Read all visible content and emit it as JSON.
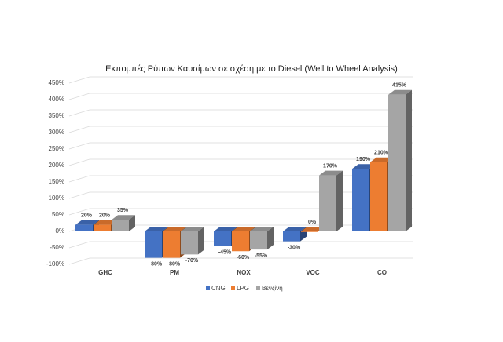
{
  "chart_data": {
    "type": "bar3d",
    "title": "Εκπομπές Ρύπων Καυσίμων σε σχέση με το Diesel (Well to Wheel Analysis)",
    "categories": [
      "GHC",
      "PM",
      "NOX",
      "VOC",
      "CO"
    ],
    "series": [
      {
        "name": "CNG",
        "color": "#4472c4",
        "values": [
          20,
          -80,
          -45,
          -30,
          190
        ],
        "value_labels": [
          "20%",
          "-80%",
          "-45%",
          "-30%",
          "190%"
        ]
      },
      {
        "name": "LPG",
        "color": "#ed7d31",
        "values": [
          20,
          -80,
          -60,
          0,
          210
        ],
        "value_labels": [
          "20%",
          "-80%",
          "-60%",
          "0%",
          "210%"
        ]
      },
      {
        "name": "Βενζίνη",
        "color": "#a5a5a5",
        "values": [
          35,
          -70,
          -55,
          170,
          415
        ],
        "value_labels": [
          "35%",
          "-70%",
          "-55%",
          "170%",
          "415%"
        ]
      }
    ],
    "ylim": [
      -100,
      450
    ],
    "yticks": [
      {
        "value": -100,
        "label": "-100%"
      },
      {
        "value": -50,
        "label": "-50%"
      },
      {
        "value": 0,
        "label": "0%"
      },
      {
        "value": 50,
        "label": "50%"
      },
      {
        "value": 100,
        "label": "100%"
      },
      {
        "value": 150,
        "label": "150%"
      },
      {
        "value": 200,
        "label": "200%"
      },
      {
        "value": 250,
        "label": "250%"
      },
      {
        "value": 300,
        "label": "300%"
      },
      {
        "value": 350,
        "label": "350%"
      },
      {
        "value": 400,
        "label": "400%"
      },
      {
        "value": 450,
        "label": "450%"
      }
    ],
    "grid": true
  }
}
